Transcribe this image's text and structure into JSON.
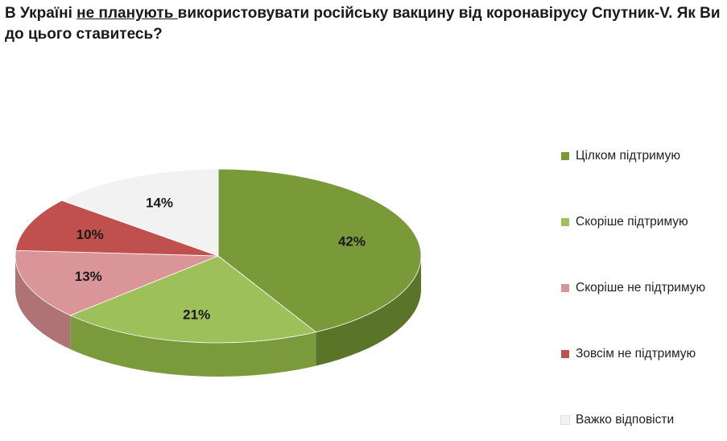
{
  "title": {
    "part1": "В Україні ",
    "part2": "не планують ",
    "part3": "використовувати російську вакцину від коронавірусу Спутник-V. Як Ви до цього ставитесь?"
  },
  "chart_data": {
    "type": "pie",
    "style": "3d",
    "legend_position": "right",
    "slices": [
      {
        "label": "Цілком підтримую",
        "value": 42,
        "display": "42%",
        "color": "#7a9a3a",
        "side_color": "#5a7527"
      },
      {
        "label": "Скоріше підтримую",
        "value": 21,
        "display": "21%",
        "color": "#9dc05a",
        "side_color": "#7a9a3c"
      },
      {
        "label": "Скоріше не підтримую",
        "value": 13,
        "display": "13%",
        "color": "#d99597",
        "side_color": "#b07375"
      },
      {
        "label": "Зовсім не підтримую",
        "value": 10,
        "display": "10%",
        "color": "#c0504d",
        "side_color": "#953c3a"
      },
      {
        "label": "Важко відповісти",
        "value": 14,
        "display": "14%",
        "color": "#f2f2f2",
        "side_color": "#cfcfcf"
      }
    ]
  }
}
